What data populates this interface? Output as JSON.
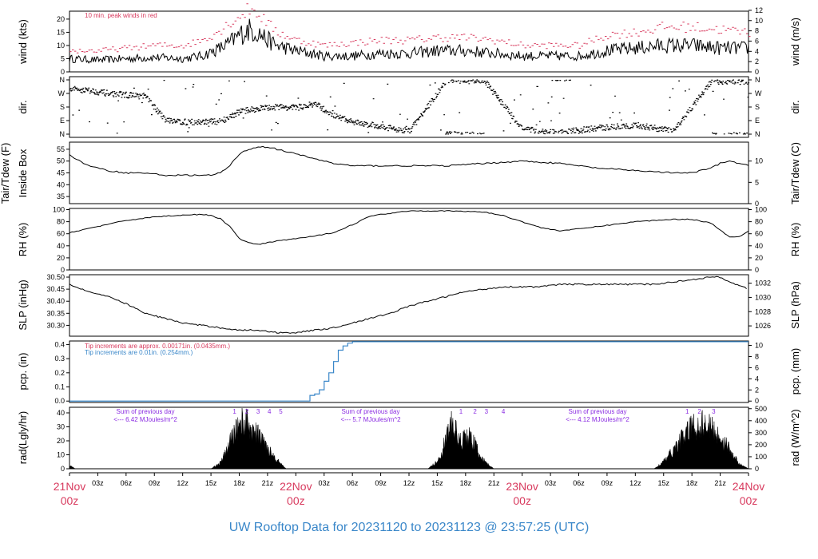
{
  "title": "UW Rooftop Data for 20231120  to  20231123 @ 23:57:25  (UTC)",
  "colors": {
    "red": "#d83a5e",
    "blue": "#3a87c9",
    "purple": "#8a2be2",
    "black": "#000000"
  },
  "x_axis": {
    "hour_labels": [
      "03z",
      "06z",
      "09z",
      "12z",
      "15z",
      "18z",
      "21z"
    ],
    "day_labels": [
      "21Nov",
      "22Nov",
      "23Nov",
      "24Nov"
    ],
    "day_sub": "00z"
  },
  "panels": {
    "wind": {
      "left_label": "wind (kts)",
      "right_label": "wind (m/s)",
      "left_ticks": [
        "0",
        "5",
        "10",
        "15",
        "20"
      ],
      "right_ticks": [
        "0",
        "2",
        "4",
        "6",
        "8",
        "10",
        "12"
      ],
      "note": "10 min. peak winds in red"
    },
    "dir": {
      "left_label": "dir.",
      "right_label": "dir.",
      "ticks": [
        "N",
        "E",
        "S",
        "W",
        "N"
      ]
    },
    "temp": {
      "left_label": "Tair/Tdew (F)",
      "left_label2": "Inside Box",
      "right_label": "Tair/Tdew (C)",
      "left_ticks": [
        "35",
        "40",
        "45",
        "50",
        "55"
      ],
      "right_ticks": [
        "0",
        "5",
        "10"
      ]
    },
    "rh": {
      "left_label": "RH (%)",
      "right_label": "RH (%)",
      "ticks": [
        "0",
        "20",
        "40",
        "60",
        "80",
        "100"
      ]
    },
    "slp": {
      "left_label": "SLP (inHg)",
      "right_label": "SLP (hPa)",
      "left_ticks": [
        "30.30",
        "30.35",
        "30.40",
        "30.45",
        "30.50"
      ],
      "right_ticks": [
        "1026",
        "1028",
        "1030",
        "1032"
      ]
    },
    "pcp": {
      "left_label": "pcp. (in)",
      "right_label": "pcp. (mm)",
      "left_ticks": [
        "0.0",
        "0.1",
        "0.2",
        "0.3",
        "0.4"
      ],
      "right_ticks": [
        "0",
        "2",
        "4",
        "6",
        "8",
        "10"
      ],
      "note1": "Tip increments are approx. 0.00171in. (0.0435mm.)",
      "note2": "Tip increments are 0.01in. (0.254mm.)"
    },
    "rad": {
      "left_label": "rad(Lgly/hr)",
      "right_label": "rad (W/m^2)",
      "left_ticks": [
        "0",
        "10",
        "20",
        "30",
        "40"
      ],
      "right_ticks": [
        "0",
        "100",
        "200",
        "300",
        "400",
        "500"
      ],
      "sum_label": "Sum of previous day",
      "sums": [
        "<--- 6.42 MJoules/m^2",
        "<--- 5.7 MJoules/m^2",
        "<--- 4.12 MJoules/m^2"
      ],
      "day_markers": [
        [
          "1",
          "2",
          "3",
          "4",
          "5"
        ],
        [
          "1",
          "2",
          "3",
          "4"
        ],
        [
          "1",
          "2",
          "3",
          "4"
        ]
      ]
    }
  },
  "chart_data": {
    "type": "line",
    "x_unit": "hours since 2023-11-20 00z (UTC)",
    "x_range": [
      0,
      72
    ],
    "series": [
      {
        "name": "wind",
        "unit": "kts",
        "x": [
          0,
          3,
          6,
          9,
          12,
          14,
          16,
          17,
          18,
          19,
          20,
          21,
          22,
          24,
          27,
          30,
          33,
          36,
          39,
          42,
          45,
          48,
          51,
          54,
          57,
          60,
          63,
          66,
          69,
          72
        ],
        "values": [
          5,
          4.5,
          5,
          5.5,
          5,
          6,
          9,
          11,
          14,
          16,
          15,
          12,
          10,
          8,
          6,
          6,
          7,
          7,
          8,
          8,
          7,
          6,
          6,
          6,
          8,
          9,
          10,
          10,
          9,
          9
        ]
      },
      {
        "name": "10 min. peak winds in red",
        "unit": "kts",
        "x": [
          0,
          3,
          6,
          9,
          12,
          14,
          16,
          17,
          18,
          19,
          20,
          21,
          22,
          24,
          27,
          30,
          33,
          36,
          39,
          42,
          45,
          48,
          51,
          54,
          57,
          60,
          63,
          66,
          69,
          72
        ],
        "values": [
          8,
          8,
          9,
          10,
          10,
          12,
          16,
          19,
          21,
          24,
          22,
          18,
          15,
          12,
          10,
          11,
          12,
          12,
          13,
          13,
          12,
          10,
          10,
          10,
          14,
          15,
          17,
          17,
          16,
          15
        ]
      },
      {
        "name": "dir",
        "unit": "deg",
        "x": [
          0,
          2,
          4,
          6,
          8,
          10,
          12,
          14,
          16,
          18,
          20,
          22,
          24,
          26,
          28,
          30,
          32,
          36,
          40,
          44,
          48,
          52,
          56,
          60,
          64,
          68,
          72
        ],
        "values": [
          300,
          290,
          270,
          260,
          250,
          100,
          80,
          80,
          85,
          150,
          170,
          180,
          175,
          200,
          120,
          80,
          60,
          20,
          360,
          350,
          30,
          10,
          40,
          60,
          20,
          350,
          350
        ]
      },
      {
        "name": "Tair",
        "unit": "F",
        "x": [
          0,
          2,
          4,
          6,
          8,
          10,
          12,
          14,
          15,
          16,
          17,
          18,
          19,
          20,
          21,
          22,
          24,
          26,
          28,
          30,
          32,
          36,
          40,
          44,
          48,
          52,
          54,
          56,
          60,
          64,
          66,
          68,
          69,
          70,
          71,
          72
        ],
        "values": [
          52.5,
          48,
          46,
          45,
          45,
          44,
          44,
          44,
          44,
          45,
          48,
          53,
          55,
          56,
          56,
          55,
          53,
          51,
          49,
          48,
          48,
          48,
          48,
          49,
          50,
          49,
          48,
          47,
          46,
          45,
          45,
          47,
          49,
          50,
          49,
          48
        ]
      },
      {
        "name": "RH",
        "unit": "%",
        "x": [
          0,
          3,
          6,
          9,
          12,
          14,
          15,
          16,
          17,
          18,
          19,
          20,
          21,
          22,
          24,
          26,
          28,
          30,
          32,
          36,
          40,
          44,
          46,
          48,
          50,
          52,
          54,
          56,
          60,
          64,
          66,
          68,
          69,
          70,
          71,
          72
        ],
        "values": [
          62,
          72,
          82,
          88,
          91,
          92,
          90,
          85,
          72,
          52,
          45,
          42,
          45,
          48,
          52,
          56,
          62,
          75,
          90,
          98,
          98,
          96,
          90,
          80,
          70,
          65,
          68,
          72,
          80,
          84,
          84,
          78,
          66,
          55,
          55,
          65
        ]
      },
      {
        "name": "SLP",
        "unit": "inHg",
        "x": [
          0,
          2,
          4,
          6,
          8,
          10,
          12,
          14,
          16,
          18,
          20,
          22,
          24,
          26,
          28,
          30,
          32,
          34,
          36,
          38,
          40,
          42,
          44,
          46,
          48,
          50,
          52,
          54,
          56,
          58,
          60,
          62,
          64,
          66,
          68,
          69,
          70,
          72
        ],
        "values": [
          30.47,
          30.44,
          30.42,
          30.39,
          30.35,
          30.33,
          30.31,
          30.3,
          30.29,
          30.28,
          30.28,
          30.27,
          30.27,
          30.28,
          30.29,
          30.31,
          30.33,
          30.35,
          30.38,
          30.4,
          30.42,
          30.44,
          30.45,
          30.46,
          30.46,
          30.46,
          30.47,
          30.47,
          30.47,
          30.47,
          30.47,
          30.47,
          30.48,
          30.49,
          30.5,
          30.5,
          30.48,
          30.45
        ]
      },
      {
        "name": "pcp",
        "unit": "in",
        "x": [
          0,
          24,
          25,
          25.5,
          26,
          26.5,
          27,
          27.5,
          28,
          28.5,
          29,
          29.5,
          30,
          31,
          72
        ],
        "values": [
          0,
          0,
          0,
          0.04,
          0.05,
          0.08,
          0.14,
          0.2,
          0.28,
          0.36,
          0.39,
          0.41,
          0.42,
          0.42,
          0.42
        ]
      },
      {
        "name": "rad",
        "unit": "Lgly/hr",
        "x": [
          0,
          0.6,
          15,
          16,
          16.5,
          17,
          17.5,
          18,
          18.5,
          19,
          19.5,
          20,
          20.5,
          21,
          21.5,
          22,
          22.5,
          23,
          38,
          39,
          39.5,
          40,
          40.5,
          41,
          41.5,
          42,
          42.5,
          43,
          43.5,
          44,
          44.5,
          45,
          62,
          63,
          64,
          65,
          65.5,
          66,
          66.5,
          67,
          67.5,
          68,
          68.5,
          69,
          69.5,
          70,
          70.5,
          71,
          72
        ],
        "values": [
          3,
          0,
          0,
          5,
          12,
          22,
          30,
          38,
          40,
          36,
          30,
          28,
          24,
          18,
          12,
          8,
          3,
          0,
          0,
          6,
          14,
          28,
          36,
          30,
          22,
          28,
          26,
          20,
          12,
          6,
          3,
          0,
          0,
          6,
          15,
          26,
          30,
          36,
          34,
          38,
          36,
          34,
          30,
          26,
          22,
          16,
          10,
          4,
          0
        ]
      }
    ]
  }
}
